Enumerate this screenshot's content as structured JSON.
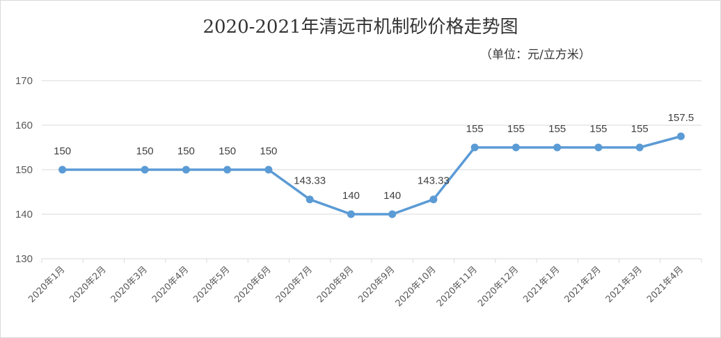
{
  "chart_data": {
    "type": "line",
    "title": "2020-2021年清远市机制砂价格走势图",
    "unit_note": "（单位：元/立方米）",
    "xlabel": "",
    "ylabel": "",
    "ylim": [
      130,
      170
    ],
    "yticks": [
      130,
      140,
      150,
      160,
      170
    ],
    "grid": true,
    "color": "#5b9bd5",
    "categories": [
      "2020年1月",
      "2020年2月",
      "2020年3月",
      "2020年4月",
      "2020年5月",
      "2020年6月",
      "2020年7月",
      "2020年8月",
      "2020年9月",
      "2020年10月",
      "2020年11月",
      "2020年12月",
      "2021年1月",
      "2021年2月",
      "2021年3月",
      "2021年4月"
    ],
    "points": [
      {
        "index": 0,
        "value": 150,
        "label": "150"
      },
      {
        "index": 2,
        "value": 150,
        "label": "150"
      },
      {
        "index": 3,
        "value": 150,
        "label": "150"
      },
      {
        "index": 4,
        "value": 150,
        "label": "150"
      },
      {
        "index": 5,
        "value": 150,
        "label": "150"
      },
      {
        "index": 6,
        "value": 143.33,
        "label": "143.33"
      },
      {
        "index": 7,
        "value": 140,
        "label": "140"
      },
      {
        "index": 8,
        "value": 140,
        "label": "140"
      },
      {
        "index": 9,
        "value": 143.33,
        "label": "143.33"
      },
      {
        "index": 10,
        "value": 155,
        "label": "155"
      },
      {
        "index": 11,
        "value": 155,
        "label": "155"
      },
      {
        "index": 12,
        "value": 155,
        "label": "155"
      },
      {
        "index": 13,
        "value": 155,
        "label": "155"
      },
      {
        "index": 14,
        "value": 155,
        "label": "155"
      },
      {
        "index": 15,
        "value": 157.5,
        "label": "157.5"
      }
    ]
  }
}
